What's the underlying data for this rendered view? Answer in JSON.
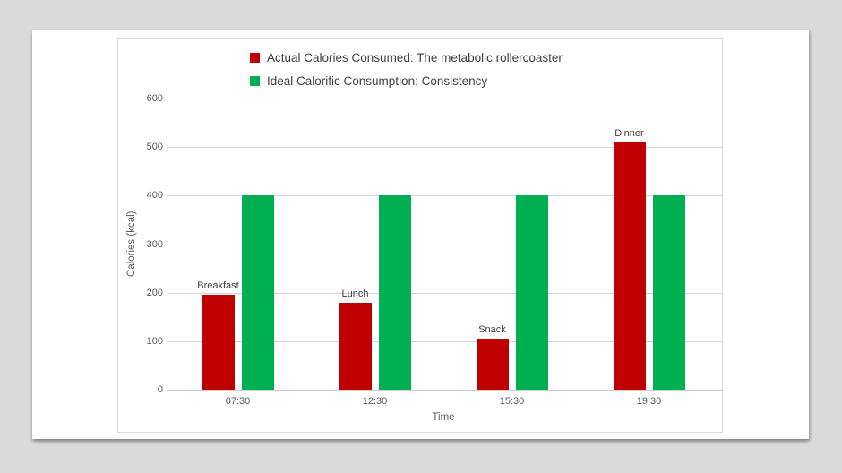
{
  "page": {
    "background_color": "#dadada",
    "slide_background_color": "#ffffff",
    "chart_border_color": "#d9d9d9",
    "gridline_color": "#d6d6d6",
    "axis_text_color": "#595959",
    "label_text_color": "#404040"
  },
  "chart_data": {
    "type": "bar",
    "title": "",
    "categories": [
      "07:30",
      "12:30",
      "15:30",
      "19:30"
    ],
    "series": [
      {
        "name": "Actual Calories Consumed: The metabolic rollercoaster",
        "color": "#c00000",
        "values": [
          195,
          180,
          105,
          510
        ],
        "point_labels": [
          "Breakfast",
          "Lunch",
          "Snack",
          "Dinner"
        ]
      },
      {
        "name": "Ideal Calorific Consumption: Consistency",
        "color": "#00b050",
        "values": [
          400,
          400,
          400,
          400
        ],
        "point_labels": [
          "",
          "",
          "",
          ""
        ]
      }
    ],
    "xlabel": "Time",
    "ylabel": "Calories (kcal)",
    "ylim": [
      0,
      600
    ],
    "ytick_step": 100,
    "ytick_labels": [
      "0",
      "100",
      "200",
      "300",
      "400",
      "500",
      "600"
    ],
    "grid": true,
    "legend_position": "top-center"
  }
}
